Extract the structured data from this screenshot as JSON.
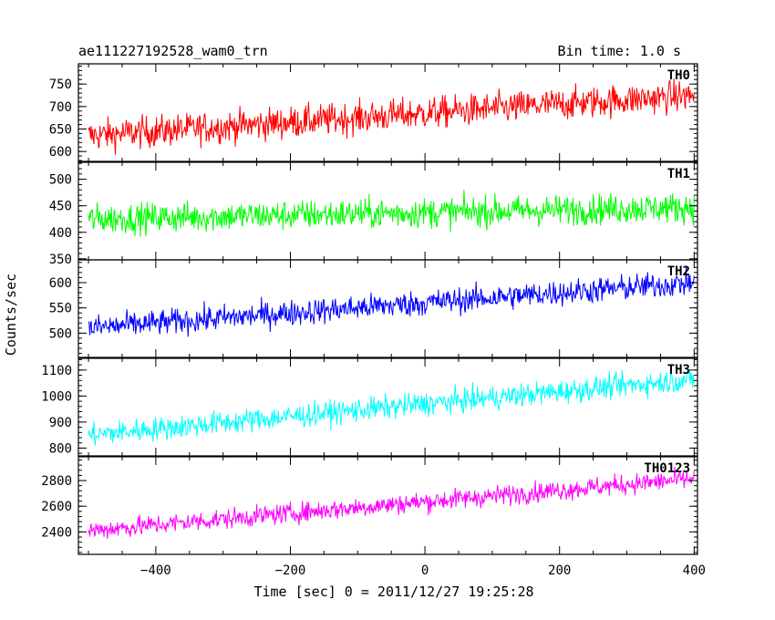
{
  "chart_data": {
    "type": "line",
    "title": "ae111227192528_wam0_trn",
    "subtitle": "Bin time: 1.0 s",
    "xlabel": "Time [sec] 0 = 2011/12/27 19:25:28",
    "ylabel": "Counts/sec",
    "xlim": [
      -515,
      405
    ],
    "x_ticks": [
      -400,
      -200,
      0,
      200,
      400
    ],
    "x_tick_labels": [
      "−400",
      "−200",
      "0",
      "200",
      "400"
    ],
    "bin_time": 1.0,
    "x_start": -500,
    "x_end": 400,
    "grid": false,
    "panels": [
      {
        "name": "TH0",
        "color": "#ff0000",
        "ylim": [
          578,
          795
        ],
        "yticks": [
          600,
          650,
          700,
          750
        ],
        "ytick_labels": [
          "600",
          "650",
          "700",
          "750"
        ],
        "trend": [
          {
            "x": -500,
            "y": 635
          },
          {
            "x": 400,
            "y": 725
          }
        ],
        "noise": 25
      },
      {
        "name": "TH1",
        "color": "#00ff00",
        "ylim": [
          348,
          532
        ],
        "yticks": [
          350,
          400,
          450,
          500
        ],
        "ytick_labels": [
          "350",
          "400",
          "450",
          "500"
        ],
        "trend": [
          {
            "x": -500,
            "y": 425
          },
          {
            "x": 400,
            "y": 447
          }
        ],
        "noise": 20
      },
      {
        "name": "TH2",
        "color": "#0000ff",
        "ylim": [
          452,
          645
        ],
        "yticks": [
          500,
          550,
          600
        ],
        "ytick_labels": [
          "500",
          "550",
          "600"
        ],
        "trend": [
          {
            "x": -500,
            "y": 510
          },
          {
            "x": 400,
            "y": 600
          }
        ],
        "noise": 18
      },
      {
        "name": "TH3",
        "color": "#00ffff",
        "ylim": [
          770,
          1145
        ],
        "yticks": [
          800,
          900,
          1000,
          1100
        ],
        "ytick_labels": [
          "800",
          "900",
          "1000",
          "1100"
        ],
        "trend": [
          {
            "x": -500,
            "y": 850
          },
          {
            "x": 400,
            "y": 1065
          }
        ],
        "noise": 32
      },
      {
        "name": "TH0123",
        "color": "#ff00ff",
        "ylim": [
          2225,
          2985
        ],
        "yticks": [
          2400,
          2600,
          2800
        ],
        "ytick_labels": [
          "2400",
          "2600",
          "2800"
        ],
        "trend": [
          {
            "x": -500,
            "y": 2410
          },
          {
            "x": 400,
            "y": 2815
          }
        ],
        "noise": 55
      }
    ]
  }
}
